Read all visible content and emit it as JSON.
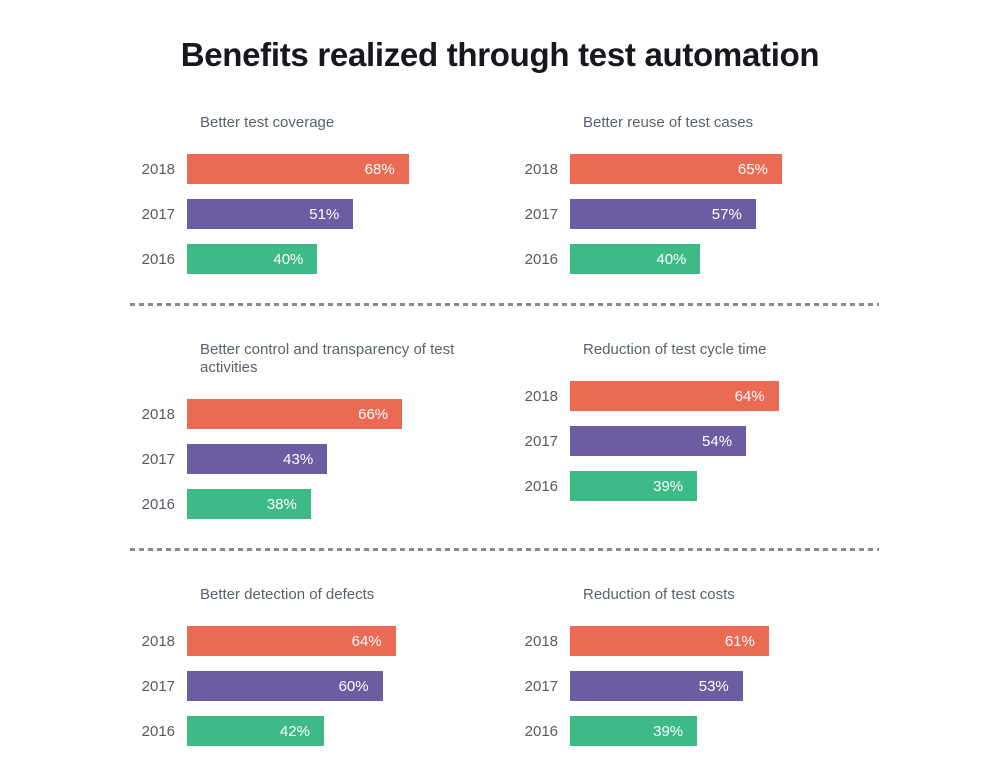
{
  "page_title": "Benefits realized through test automation",
  "colors": {
    "bar_2018": "#EB6A54",
    "bar_2017": "#6C5CA2",
    "bar_2016": "#3DBA85"
  },
  "chart_data": [
    {
      "type": "bar",
      "orientation": "horizontal",
      "title": "Better test coverage",
      "categories": [
        "2018",
        "2017",
        "2016"
      ],
      "values": [
        68,
        51,
        40
      ],
      "value_labels": [
        "68%",
        "51%",
        "40%"
      ],
      "xlim": [
        0,
        100
      ],
      "grid": false,
      "legend": false
    },
    {
      "type": "bar",
      "orientation": "horizontal",
      "title": "Better reuse of test cases",
      "categories": [
        "2018",
        "2017",
        "2016"
      ],
      "values": [
        65,
        57,
        40
      ],
      "value_labels": [
        "65%",
        "57%",
        "40%"
      ],
      "xlim": [
        0,
        100
      ],
      "grid": false,
      "legend": false
    },
    {
      "type": "bar",
      "orientation": "horizontal",
      "title": "Better control and transparency of test activities",
      "categories": [
        "2018",
        "2017",
        "2016"
      ],
      "values": [
        66,
        43,
        38
      ],
      "value_labels": [
        "66%",
        "43%",
        "38%"
      ],
      "xlim": [
        0,
        100
      ],
      "grid": false,
      "legend": false
    },
    {
      "type": "bar",
      "orientation": "horizontal",
      "title": "Reduction of test cycle time",
      "categories": [
        "2018",
        "2017",
        "2016"
      ],
      "values": [
        64,
        54,
        39
      ],
      "value_labels": [
        "64%",
        "54%",
        "39%"
      ],
      "xlim": [
        0,
        100
      ],
      "grid": false,
      "legend": false
    },
    {
      "type": "bar",
      "orientation": "horizontal",
      "title": "Better detection of defects",
      "categories": [
        "2018",
        "2017",
        "2016"
      ],
      "values": [
        64,
        60,
        42
      ],
      "value_labels": [
        "64%",
        "60%",
        "42%"
      ],
      "xlim": [
        0,
        100
      ],
      "grid": false,
      "legend": false
    },
    {
      "type": "bar",
      "orientation": "horizontal",
      "title": "Reduction of test costs",
      "categories": [
        "2018",
        "2017",
        "2016"
      ],
      "values": [
        61,
        53,
        39
      ],
      "value_labels": [
        "61%",
        "53%",
        "39%"
      ],
      "xlim": [
        0,
        100
      ],
      "grid": false,
      "legend": false
    }
  ]
}
